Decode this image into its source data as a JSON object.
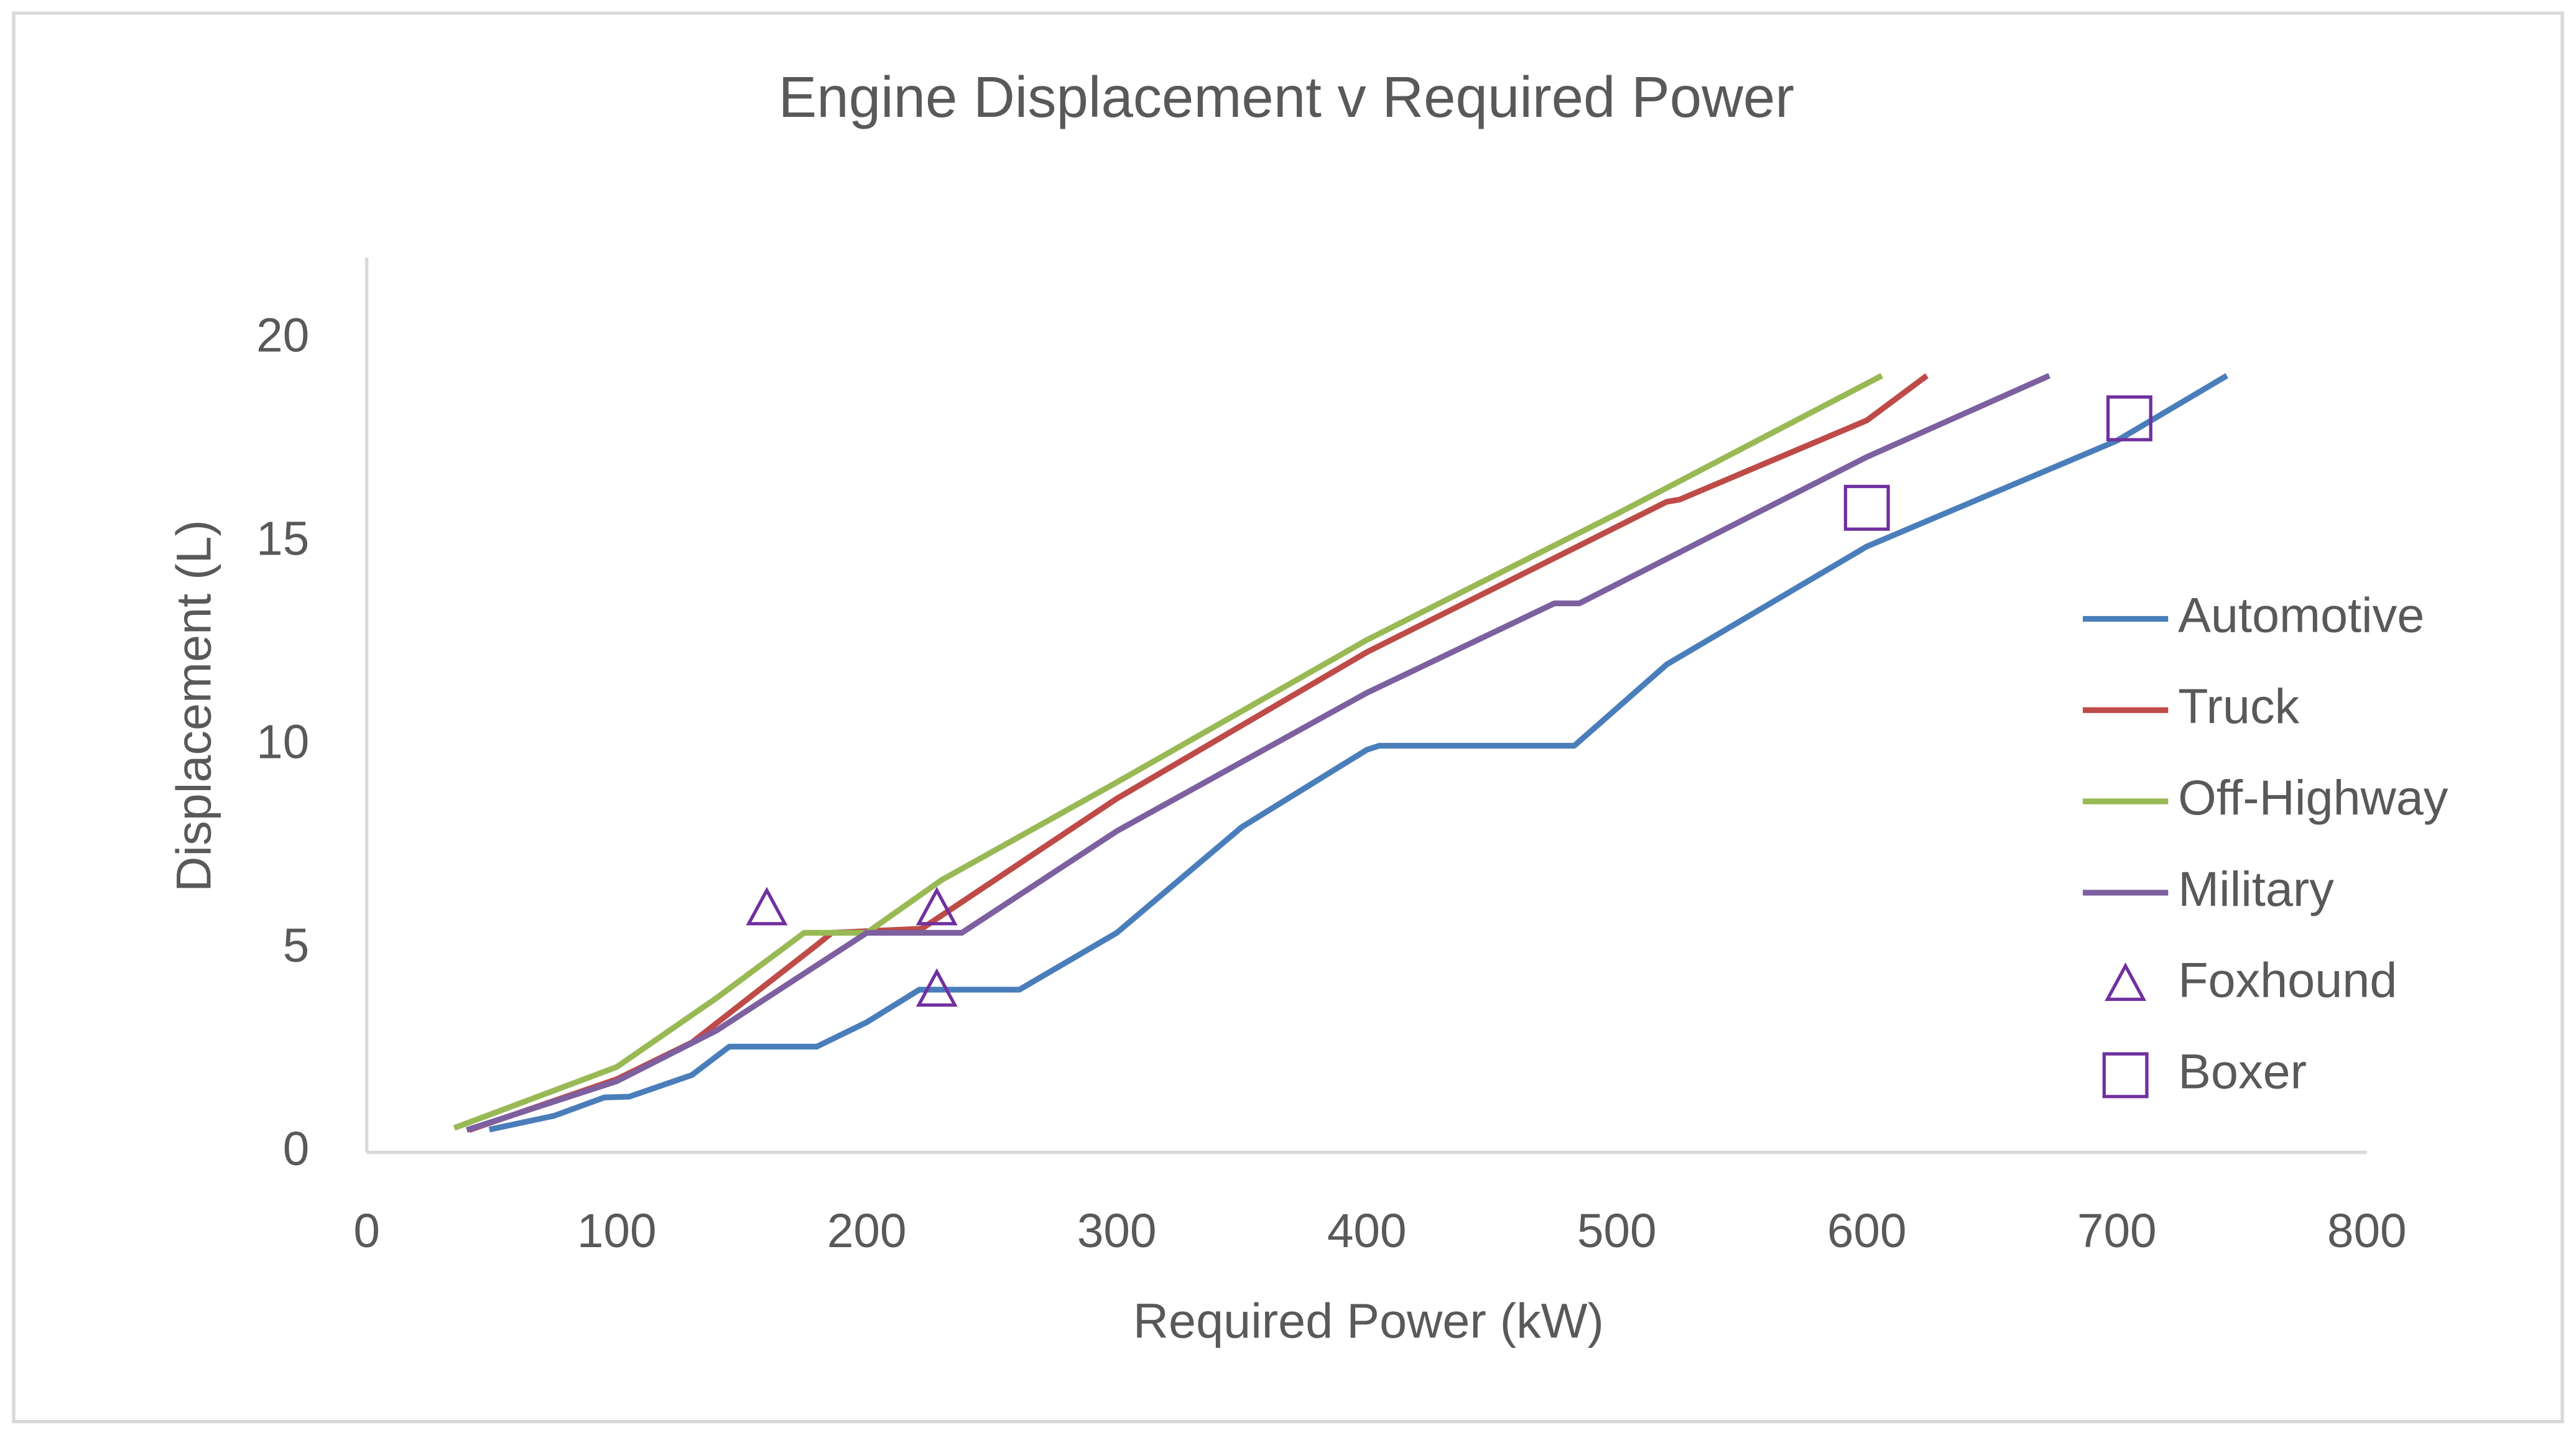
{
  "chart_data": {
    "type": "line",
    "title": "Engine Displacement v Required Power",
    "x_label": "Required Power (kW)",
    "y_label": "Displacement (L)",
    "xlim": [
      0,
      800
    ],
    "ylim": [
      0,
      22
    ],
    "xticks": [
      0,
      100,
      200,
      300,
      400,
      500,
      600,
      700,
      800
    ],
    "yticks": [
      0,
      5,
      10,
      15,
      20
    ],
    "grid": false,
    "legend": "right",
    "series": [
      {
        "name": "Automotive",
        "color": "#4a7ebb",
        "type": "line",
        "x": [
          49,
          75,
          95,
          105,
          130,
          145,
          180,
          200,
          221,
          261,
          300,
          350,
          400,
          405,
          483,
          520,
          600,
          700,
          744
        ],
        "values": [
          0.56,
          0.9,
          1.35,
          1.37,
          1.9,
          2.6,
          2.6,
          3.2,
          4.0,
          4.0,
          5.4,
          8.0,
          9.9,
          10.0,
          10.0,
          12.0,
          14.9,
          17.5,
          19.1
        ]
      },
      {
        "name": "Truck",
        "color": "#be4b48",
        "type": "line",
        "x": [
          41,
          100,
          130,
          180,
          186,
          222,
          300,
          400,
          520,
          525,
          600,
          624
        ],
        "values": [
          0.55,
          1.8,
          2.7,
          5.1,
          5.4,
          5.5,
          8.7,
          12.3,
          16.0,
          16.05,
          18.0,
          19.1
        ]
      },
      {
        "name": "Off-Highway",
        "color": "#98b954",
        "type": "line",
        "x": [
          35,
          100,
          140,
          175,
          200,
          230,
          300,
          400,
          500,
          606
        ],
        "values": [
          0.6,
          2.1,
          3.8,
          5.4,
          5.4,
          6.7,
          9.1,
          12.6,
          15.7,
          19.1
        ]
      },
      {
        "name": "Military",
        "color": "#7d60a0",
        "type": "line",
        "x": [
          40,
          100,
          140,
          200,
          238,
          300,
          400,
          475,
          485,
          600,
          673
        ],
        "values": [
          0.55,
          1.75,
          3.0,
          5.4,
          5.4,
          7.9,
          11.3,
          13.5,
          13.5,
          17.1,
          19.1
        ]
      },
      {
        "name": "Foxhound",
        "color": "#7030a0",
        "type": "scatter",
        "marker": "triangle",
        "x": [
          160,
          228,
          228
        ],
        "values": [
          6.0,
          6.0,
          4.0
        ]
      },
      {
        "name": "Boxer",
        "color": "#7030a0",
        "type": "scatter",
        "marker": "square",
        "x": [
          600,
          705
        ],
        "values": [
          15.85,
          18.05
        ]
      }
    ]
  }
}
